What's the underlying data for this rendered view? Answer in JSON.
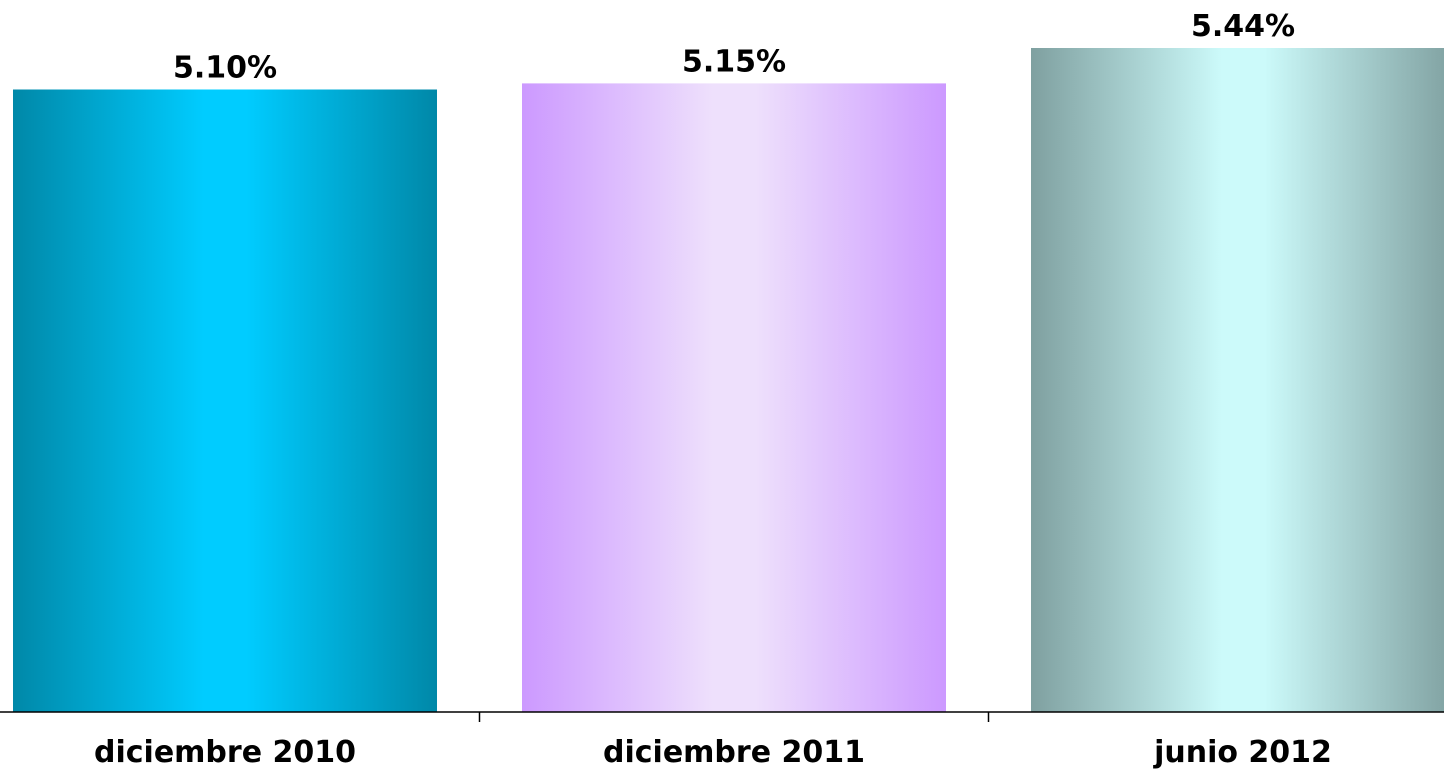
{
  "chart_data": {
    "type": "bar",
    "categories": [
      "diciembre 2010",
      "diciembre 2011",
      "junio 2012"
    ],
    "values": [
      5.1,
      5.15,
      5.44
    ],
    "value_labels": [
      "5.10%",
      "5.15%",
      "5.44%"
    ],
    "title": "",
    "xlabel": "",
    "ylabel": "",
    "ylim": [
      0,
      5.44
    ],
    "grid": false,
    "legend": "none",
    "bar_colors": [
      {
        "edge": "#0088a8",
        "center": "#00ccff"
      },
      {
        "edge": "#cc99ff",
        "center": "#eee0fc"
      },
      {
        "edge": "#7fa0a0",
        "center": "#ccfafa"
      }
    ],
    "axis_color": "#000000"
  }
}
